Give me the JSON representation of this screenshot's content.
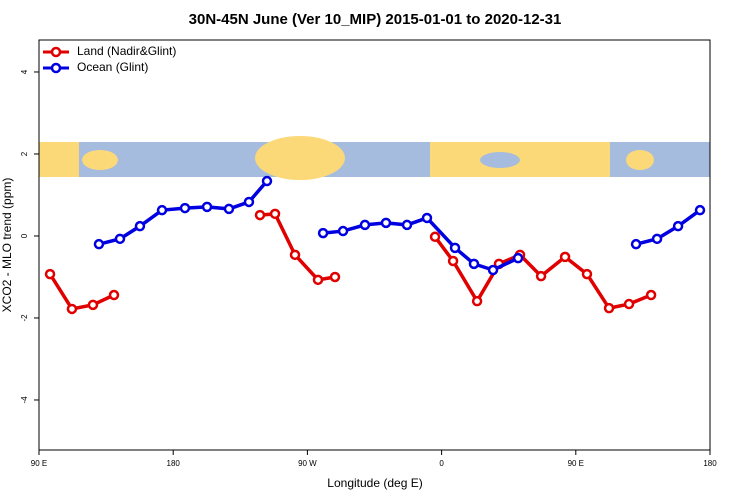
{
  "chart_data": {
    "type": "line",
    "title": "30N-45N June (Ver 10_MIP)   2015-01-01 to 2020-12-31",
    "x_label": "Longitude (deg E)",
    "y_label": "XCO2 - MLO trend (ppm)",
    "xlim": [
      90,
      540
    ],
    "ylim": [
      -5.22,
      4.78
    ],
    "xticks": [
      {
        "value": 90,
        "label": "90 E"
      },
      180,
      {
        "value": 270,
        "label": "90 W"
      },
      {
        "value": 360,
        "label": "0"
      },
      {
        "value": 450,
        "label": "90 E"
      },
      {
        "value": 540,
        "label": "180"
      }
    ],
    "yticks": [
      -4,
      -2,
      0,
      2,
      4
    ],
    "legend": "top-left",
    "series": [
      {
        "name": "Land (Nadir&Glint)",
        "color": "#e00000",
        "x": [
          97.4,
          112.1,
          126.2,
          140.3,
          null,
          238.2,
          248.3,
          261.7,
          277.1,
          288.5,
          null,
          355.6,
          367.7,
          383.8,
          398.5,
          412.6,
          426.7,
          442.8,
          457.5,
          472.3,
          485.7,
          500.5
        ],
        "values": [
          -0.93,
          -1.78,
          -1.68,
          -1.44,
          null,
          0.51,
          0.54,
          -0.46,
          -1.07,
          -1.0,
          null,
          -0.02,
          -0.61,
          -1.59,
          -0.68,
          -0.46,
          -0.98,
          -0.51,
          -0.93,
          -1.76,
          -1.66,
          -1.44
        ]
      },
      {
        "name": "Ocean (Glint)",
        "color": "#0000e0",
        "x": [
          130.2,
          144.3,
          157.7,
          172.5,
          187.9,
          202.7,
          217.4,
          230.8,
          242.9,
          null,
          280.5,
          293.9,
          308.6,
          322.7,
          336.8,
          350.2,
          369.0,
          381.7,
          394.5,
          411.3,
          null,
          490.4,
          504.5,
          518.6,
          533.3
        ],
        "values": [
          -0.2,
          -0.07,
          0.24,
          0.63,
          0.68,
          0.71,
          0.66,
          0.83,
          1.34,
          null,
          0.07,
          0.12,
          0.27,
          0.32,
          0.27,
          0.44,
          -0.29,
          -0.68,
          -0.83,
          -0.54,
          null,
          -0.2,
          -0.07,
          0.24,
          0.63
        ]
      }
    ]
  }
}
